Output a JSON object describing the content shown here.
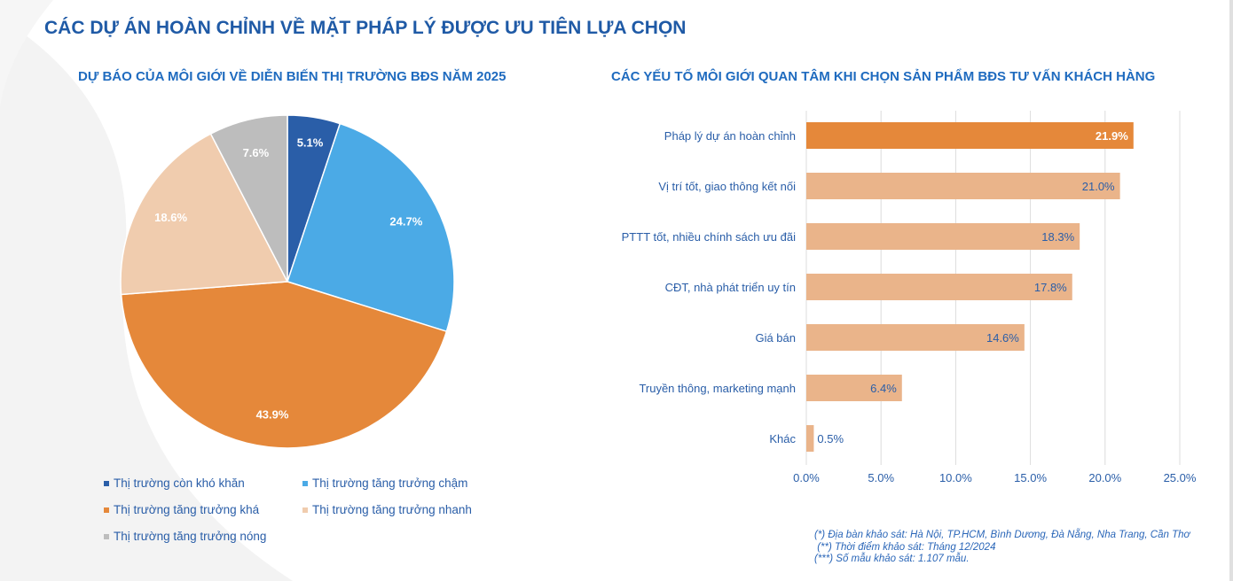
{
  "title": "CÁC DỰ ÁN HOÀN CHỈNH VỀ MẶT PHÁP LÝ ĐƯỢC ƯU TIÊN LỰA CHỌN",
  "chart_data": [
    {
      "type": "pie",
      "title": "DỰ BÁO CỦA MÔI GIỚI VỀ DIỄN BIẾN THỊ TRƯỜNG BĐS NĂM 2025",
      "slices": [
        {
          "label": "Thị trường còn khó khăn",
          "value": 5.1,
          "display": "5.1%",
          "color": "#2a5ea8"
        },
        {
          "label": "Thị trường tăng trưởng chậm",
          "value": 24.7,
          "display": "24.7%",
          "color": "#4baae6"
        },
        {
          "label": "Thị trường tăng trưởng khá",
          "value": 43.9,
          "display": "43.9%",
          "color": "#e5883a"
        },
        {
          "label": "Thị trường tăng trưởng nhanh",
          "value": 18.6,
          "display": "18.6%",
          "color": "#f0ccae"
        },
        {
          "label": "Thị trường tăng trưởng nóng",
          "value": 7.6,
          "display": "7.6%",
          "color": "#bdbdbd"
        }
      ],
      "legend_position": "bottom"
    },
    {
      "type": "bar",
      "orientation": "horizontal",
      "title": "CÁC YẾU TỐ MÔI GIỚI QUAN TÂM KHI CHỌN SẢN PHẨM BĐS TƯ VẤN KHÁCH HÀNG",
      "categories": [
        "Pháp lý dự án hoàn chỉnh",
        "Vị trí tốt, giao thông kết nối",
        "PTTT tốt, nhiều chính sách ưu đãi",
        "CĐT, nhà phát triển uy tín",
        "Giá bán",
        "Truyền thông, marketing mạnh",
        "Khác"
      ],
      "values": [
        21.9,
        21.0,
        18.3,
        17.8,
        14.6,
        6.4,
        0.5
      ],
      "labels": [
        "21.9%",
        "21.0%",
        "18.3%",
        "17.8%",
        "14.6%",
        "6.4%",
        "0.5%"
      ],
      "xlim": [
        0,
        25
      ],
      "ticks": [
        "0.0%",
        "5.0%",
        "10.0%",
        "15.0%",
        "20.0%",
        "25.0%"
      ],
      "highlight_color": "#e5883a",
      "bar_color": "#eab48a",
      "grid": true
    }
  ],
  "notes": [
    "(*) Địa bàn khảo sát: Hà Nội, TP.HCM, Bình Dương, Đà Nẵng, Nha Trang, Cần Thơ",
    " (**) Thời điểm khảo sát: Tháng 12/2024",
    "(***) Số mẫu khảo sát: 1.107 mẫu."
  ]
}
